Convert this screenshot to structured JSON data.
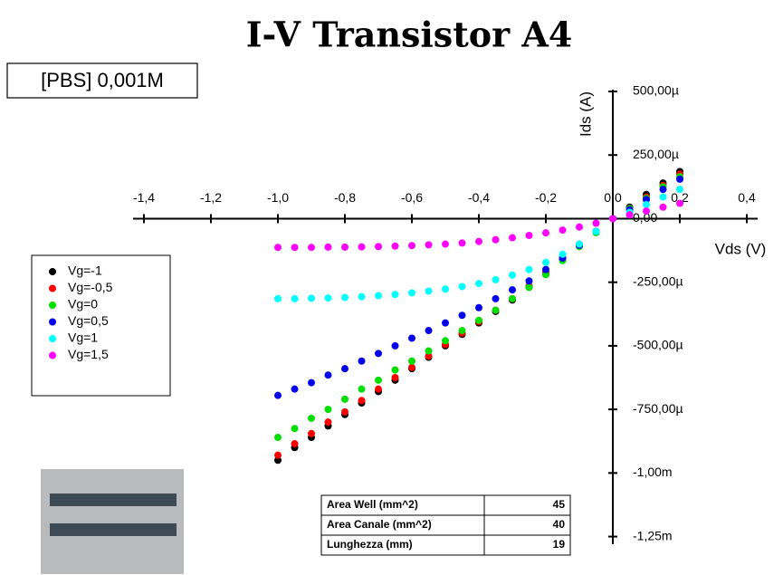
{
  "chart_data": {
    "type": "scatter",
    "title": "I-V Transistor A4",
    "annotations": [
      "[PBS] 0,001M"
    ],
    "x_label": "Vds (V)",
    "y_label": "Ids (A)",
    "x": [
      -1.0,
      -0.95,
      -0.9,
      -0.85,
      -0.8,
      -0.75,
      -0.7,
      -0.65,
      -0.6,
      -0.55,
      -0.5,
      -0.45,
      -0.4,
      -0.35,
      -0.3,
      -0.25,
      -0.2,
      -0.15,
      -0.1,
      -0.05,
      0.0,
      0.05,
      0.1,
      0.15,
      0.2
    ],
    "series": [
      {
        "name": "Vg=-1",
        "color": "#000000",
        "values": [
          -0.00095,
          -0.0009,
          -0.00086,
          -0.000815,
          -0.00077,
          -0.000725,
          -0.00068,
          -0.000635,
          -0.00059,
          -0.000545,
          -0.0005,
          -0.000455,
          -0.00041,
          -0.000365,
          -0.00032,
          -0.00027,
          -0.000215,
          -0.00016,
          -0.000105,
          -5e-05,
          0,
          4.5e-05,
          9.5e-05,
          0.00014,
          0.000185
        ]
      },
      {
        "name": "Vg=-0,5",
        "color": "#ff0000",
        "values": [
          -0.00093,
          -0.000885,
          -0.000845,
          -0.0008,
          -0.00076,
          -0.000715,
          -0.00067,
          -0.000625,
          -0.000585,
          -0.00054,
          -0.000495,
          -0.00045,
          -0.000405,
          -0.00036,
          -0.000315,
          -0.000265,
          -0.00021,
          -0.000155,
          -0.0001,
          -5e-05,
          0,
          4e-05,
          8.5e-05,
          0.00013,
          0.000175
        ]
      },
      {
        "name": "Vg=0",
        "color": "#00e000",
        "values": [
          -0.00086,
          -0.000825,
          -0.000785,
          -0.00075,
          -0.00071,
          -0.00067,
          -0.000635,
          -0.000595,
          -0.00056,
          -0.00052,
          -0.00048,
          -0.00044,
          -0.0004,
          -0.00036,
          -0.000315,
          -0.00027,
          -0.00022,
          -0.000165,
          -0.00011,
          -5.5e-05,
          0,
          4e-05,
          8e-05,
          0.000125,
          0.000165
        ]
      },
      {
        "name": "Vg=0,5",
        "color": "#0000ee",
        "values": [
          -0.000695,
          -0.00067,
          -0.000645,
          -0.000615,
          -0.00059,
          -0.00056,
          -0.00053,
          -0.0005,
          -0.00047,
          -0.00044,
          -0.00041,
          -0.00038,
          -0.00035,
          -0.000315,
          -0.00028,
          -0.000245,
          -0.0002,
          -0.000155,
          -0.000105,
          -5e-05,
          0,
          3.5e-05,
          7.5e-05,
          0.000115,
          0.000155
        ]
      },
      {
        "name": "Vg=1",
        "color": "#00ffff",
        "values": [
          -0.000315,
          -0.000315,
          -0.000313,
          -0.000312,
          -0.00031,
          -0.000307,
          -0.000303,
          -0.000298,
          -0.000292,
          -0.000285,
          -0.000277,
          -0.000267,
          -0.000255,
          -0.00024,
          -0.000222,
          -0.0002,
          -0.000172,
          -0.00014,
          -0.0001,
          -5e-05,
          0,
          2.5e-05,
          5.5e-05,
          8.5e-05,
          0.000115
        ]
      },
      {
        "name": "Vg=1,5",
        "color": "#ff00ff",
        "values": [
          -0.000113,
          -0.000113,
          -0.000113,
          -0.000112,
          -0.000112,
          -0.000111,
          -0.00011,
          -0.000108,
          -0.000106,
          -0.000103,
          -0.0001,
          -9.6e-05,
          -9e-05,
          -8.3e-05,
          -7.5e-05,
          -6.6e-05,
          -5.6e-05,
          -4.5e-05,
          -3.3e-05,
          -1.8e-05,
          0,
          1.5e-05,
          3e-05,
          4.5e-05,
          6e-05
        ]
      }
    ],
    "xlim": [
      -1.4,
      0.4
    ],
    "xticks": [
      {
        "value": -1.4,
        "label": "-1,4"
      },
      {
        "value": -1.2,
        "label": "-1,2"
      },
      {
        "value": -1.0,
        "label": "-1,0"
      },
      {
        "value": -0.8,
        "label": "-0,8"
      },
      {
        "value": -0.6,
        "label": "-0,6"
      },
      {
        "value": -0.4,
        "label": "-0,4"
      },
      {
        "value": -0.2,
        "label": "-0,2"
      },
      {
        "value": 0,
        "label": "0,0"
      },
      {
        "value": 0.2,
        "label": "0,2"
      },
      {
        "value": 0.4,
        "label": "0,4"
      }
    ],
    "ylim": [
      -0.00128,
      0.0005
    ],
    "yticks": [
      {
        "value": 0.0005,
        "label": "500,00µ"
      },
      {
        "value": 0.00025,
        "label": "250,00µ"
      },
      {
        "value": 0,
        "label": "0,00"
      },
      {
        "value": -0.00025,
        "label": "-250,00µ"
      },
      {
        "value": -0.0005,
        "label": "-500,00µ"
      },
      {
        "value": -0.00075,
        "label": "-750,00µ"
      },
      {
        "value": -0.001,
        "label": "-1,00m"
      },
      {
        "value": -0.00125,
        "label": "-1,25m"
      }
    ],
    "legend": "left"
  },
  "table": {
    "rows": [
      [
        "Area Well (mm^2)",
        45
      ],
      [
        "Area Canale (mm^2)",
        40
      ],
      [
        "Lunghezza (mm)",
        19
      ]
    ]
  }
}
